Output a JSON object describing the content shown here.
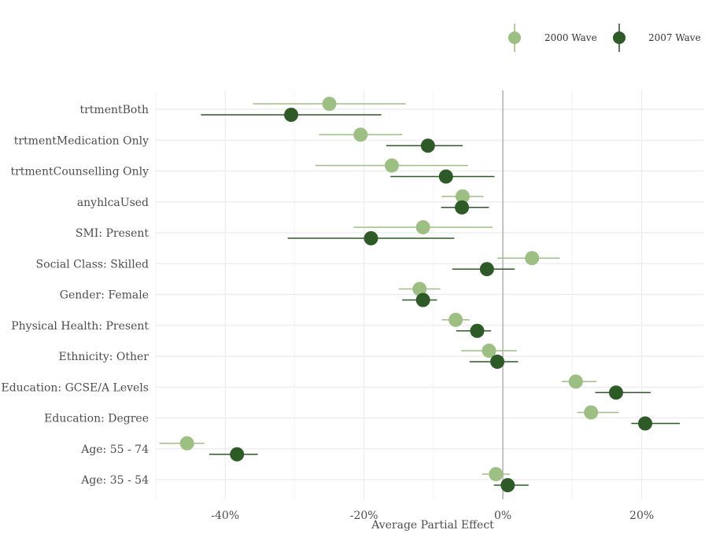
{
  "chart_data": {
    "type": "scatter",
    "subtype": "dot-whisker",
    "title": "",
    "xlabel": "Average Partial Effect",
    "ylabel": "",
    "x_unit": "percent",
    "xlim": [
      -50,
      29
    ],
    "xticks": [
      -40,
      -20,
      0,
      20
    ],
    "xtick_labels": [
      "-40%",
      "-20%",
      "0%",
      "20%"
    ],
    "reference_line": 0,
    "grid": true,
    "legend_position": "top-right",
    "categories": [
      "trtmentBoth",
      "trtmentMedication Only",
      "trtmentCounselling Only",
      "anyhlcaUsed",
      "SMI: Present",
      "Social Class: Skilled",
      "Gender: Female",
      "Physical Health: Present",
      "Ethnicity: Other",
      "Education: GCSE/A Levels",
      "Education: Degree",
      "Age: 55 - 74",
      "Age: 35 - 54"
    ],
    "series": [
      {
        "name": "2000 Wave",
        "color": "#9dbf84",
        "points": [
          {
            "estimate": -25.0,
            "low": -36.0,
            "high": -14.0
          },
          {
            "estimate": -20.5,
            "low": -26.5,
            "high": -14.5
          },
          {
            "estimate": -16.0,
            "low": -27.0,
            "high": -5.0
          },
          {
            "estimate": -5.8,
            "low": -8.8,
            "high": -2.8
          },
          {
            "estimate": -11.5,
            "low": -21.5,
            "high": -1.5
          },
          {
            "estimate": 4.2,
            "low": -0.8,
            "high": 8.2
          },
          {
            "estimate": -12.0,
            "low": -15.0,
            "high": -9.0
          },
          {
            "estimate": -6.8,
            "low": -8.8,
            "high": -4.8
          },
          {
            "estimate": -2.0,
            "low": -6.0,
            "high": 2.0
          },
          {
            "estimate": 10.5,
            "low": 8.5,
            "high": 13.5
          },
          {
            "estimate": 12.7,
            "low": 10.7,
            "high": 16.7
          },
          {
            "estimate": -45.5,
            "low": -49.5,
            "high": -43.0
          },
          {
            "estimate": -1.0,
            "low": -3.0,
            "high": 1.0
          }
        ]
      },
      {
        "name": "2007 Wave",
        "color": "#2d5a27",
        "points": [
          {
            "estimate": -30.5,
            "low": -43.5,
            "high": -17.5
          },
          {
            "estimate": -10.8,
            "low": -16.8,
            "high": -5.8
          },
          {
            "estimate": -8.2,
            "low": -16.2,
            "high": -1.2
          },
          {
            "estimate": -5.9,
            "low": -8.9,
            "high": -2.0
          },
          {
            "estimate": -19.0,
            "low": -31.0,
            "high": -7.0
          },
          {
            "estimate": -2.3,
            "low": -7.3,
            "high": 1.7
          },
          {
            "estimate": -11.5,
            "low": -14.5,
            "high": -9.5
          },
          {
            "estimate": -3.7,
            "low": -6.7,
            "high": -1.7
          },
          {
            "estimate": -0.8,
            "low": -4.8,
            "high": 2.2
          },
          {
            "estimate": 16.3,
            "low": 13.3,
            "high": 21.3
          },
          {
            "estimate": 20.5,
            "low": 18.5,
            "high": 25.5
          },
          {
            "estimate": -38.3,
            "low": -42.3,
            "high": -35.3
          },
          {
            "estimate": 0.7,
            "low": -1.3,
            "high": 3.7
          }
        ]
      }
    ]
  }
}
